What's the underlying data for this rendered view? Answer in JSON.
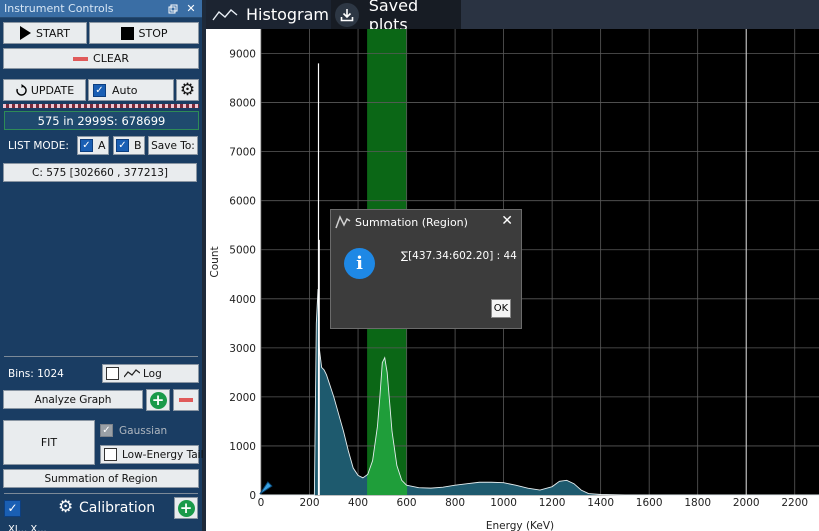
{
  "panel": {
    "title": "Instrument Controls",
    "float_icon": "float-window-icon",
    "close_glyph": "✕",
    "start_label": "START",
    "stop_label": "STOP",
    "clear_label": "CLEAR",
    "update_label": "UPDATE",
    "auto_label": "Auto",
    "status_text": "575 in 2999S: 678699",
    "list_mode_label": "LIST MODE:",
    "list_a_label": "A",
    "list_b_label": "B",
    "save_to_label": "Save To:",
    "range_text": "C: 575 [302660 , 377213]",
    "bins_label": "Bins: 1024",
    "log_label": "Log",
    "analyze_label": "Analyze Graph",
    "fit_label": "FIT",
    "gaussian_label": "Gaussian",
    "low_energy_label": "Low-Energy Tail",
    "summation_label": "Summation of Region",
    "calibration_label": "Calibration",
    "bottom_cut_text": "Xl... X..."
  },
  "tabs": [
    {
      "label": "Histogram",
      "icon": "line-chart-icon"
    },
    {
      "label": "Saved plots",
      "icon": "download-icon"
    }
  ],
  "dialog": {
    "title": "Summation (Region)",
    "close_glyph": "✕",
    "info_glyph": "i",
    "message": "∑[437.34:602.20] : 44",
    "ok_label": "OK"
  },
  "colors": {
    "panel_bg": "#1a3d63",
    "plot_bg": "#000000",
    "histogram_fill": "#1e5a6e",
    "region_fill": "#1f9e3a",
    "region_band": "#0f8a1e"
  },
  "chart_data": {
    "type": "area",
    "title": "",
    "xlabel": "Energy (KeV)",
    "ylabel": "Count",
    "xlim": [
      0,
      2300
    ],
    "ylim": [
      0,
      9500
    ],
    "x_ticks": [
      0,
      200,
      400,
      600,
      800,
      1000,
      1200,
      1400,
      1600,
      1800,
      2000,
      2200
    ],
    "y_ticks": [
      0,
      1000,
      2000,
      3000,
      4000,
      5000,
      6000,
      7000,
      8000,
      9000
    ],
    "grid": true,
    "region": [
      437.34,
      602.2
    ],
    "spikes": [
      {
        "x": 237,
        "y": 8800
      },
      {
        "x": 240,
        "y": 5200
      }
    ],
    "series": [
      {
        "x": [
          0,
          200,
          220,
          228,
          235,
          240,
          245,
          250,
          260,
          270,
          280,
          290,
          300,
          320,
          340,
          360,
          380,
          400,
          420,
          440,
          460,
          480,
          490,
          500,
          510,
          520,
          530,
          540,
          560,
          580,
          600,
          620,
          650,
          700,
          750,
          800,
          850,
          900,
          950,
          1000,
          1050,
          1100,
          1150,
          1200,
          1230,
          1260,
          1290,
          1320,
          1350,
          1400,
          1500,
          1600,
          1800,
          2000,
          2200,
          2300
        ],
        "values": [
          0,
          0,
          0,
          3500,
          4200,
          3000,
          2800,
          2600,
          2550,
          2450,
          2300,
          2150,
          2000,
          1650,
          1300,
          900,
          550,
          400,
          350,
          420,
          700,
          1400,
          2000,
          2700,
          2800,
          2500,
          1900,
          1300,
          600,
          300,
          200,
          180,
          150,
          140,
          160,
          200,
          230,
          260,
          260,
          250,
          200,
          140,
          100,
          170,
          280,
          300,
          230,
          100,
          30,
          10,
          0,
          0,
          0,
          0,
          0,
          0
        ]
      }
    ]
  }
}
